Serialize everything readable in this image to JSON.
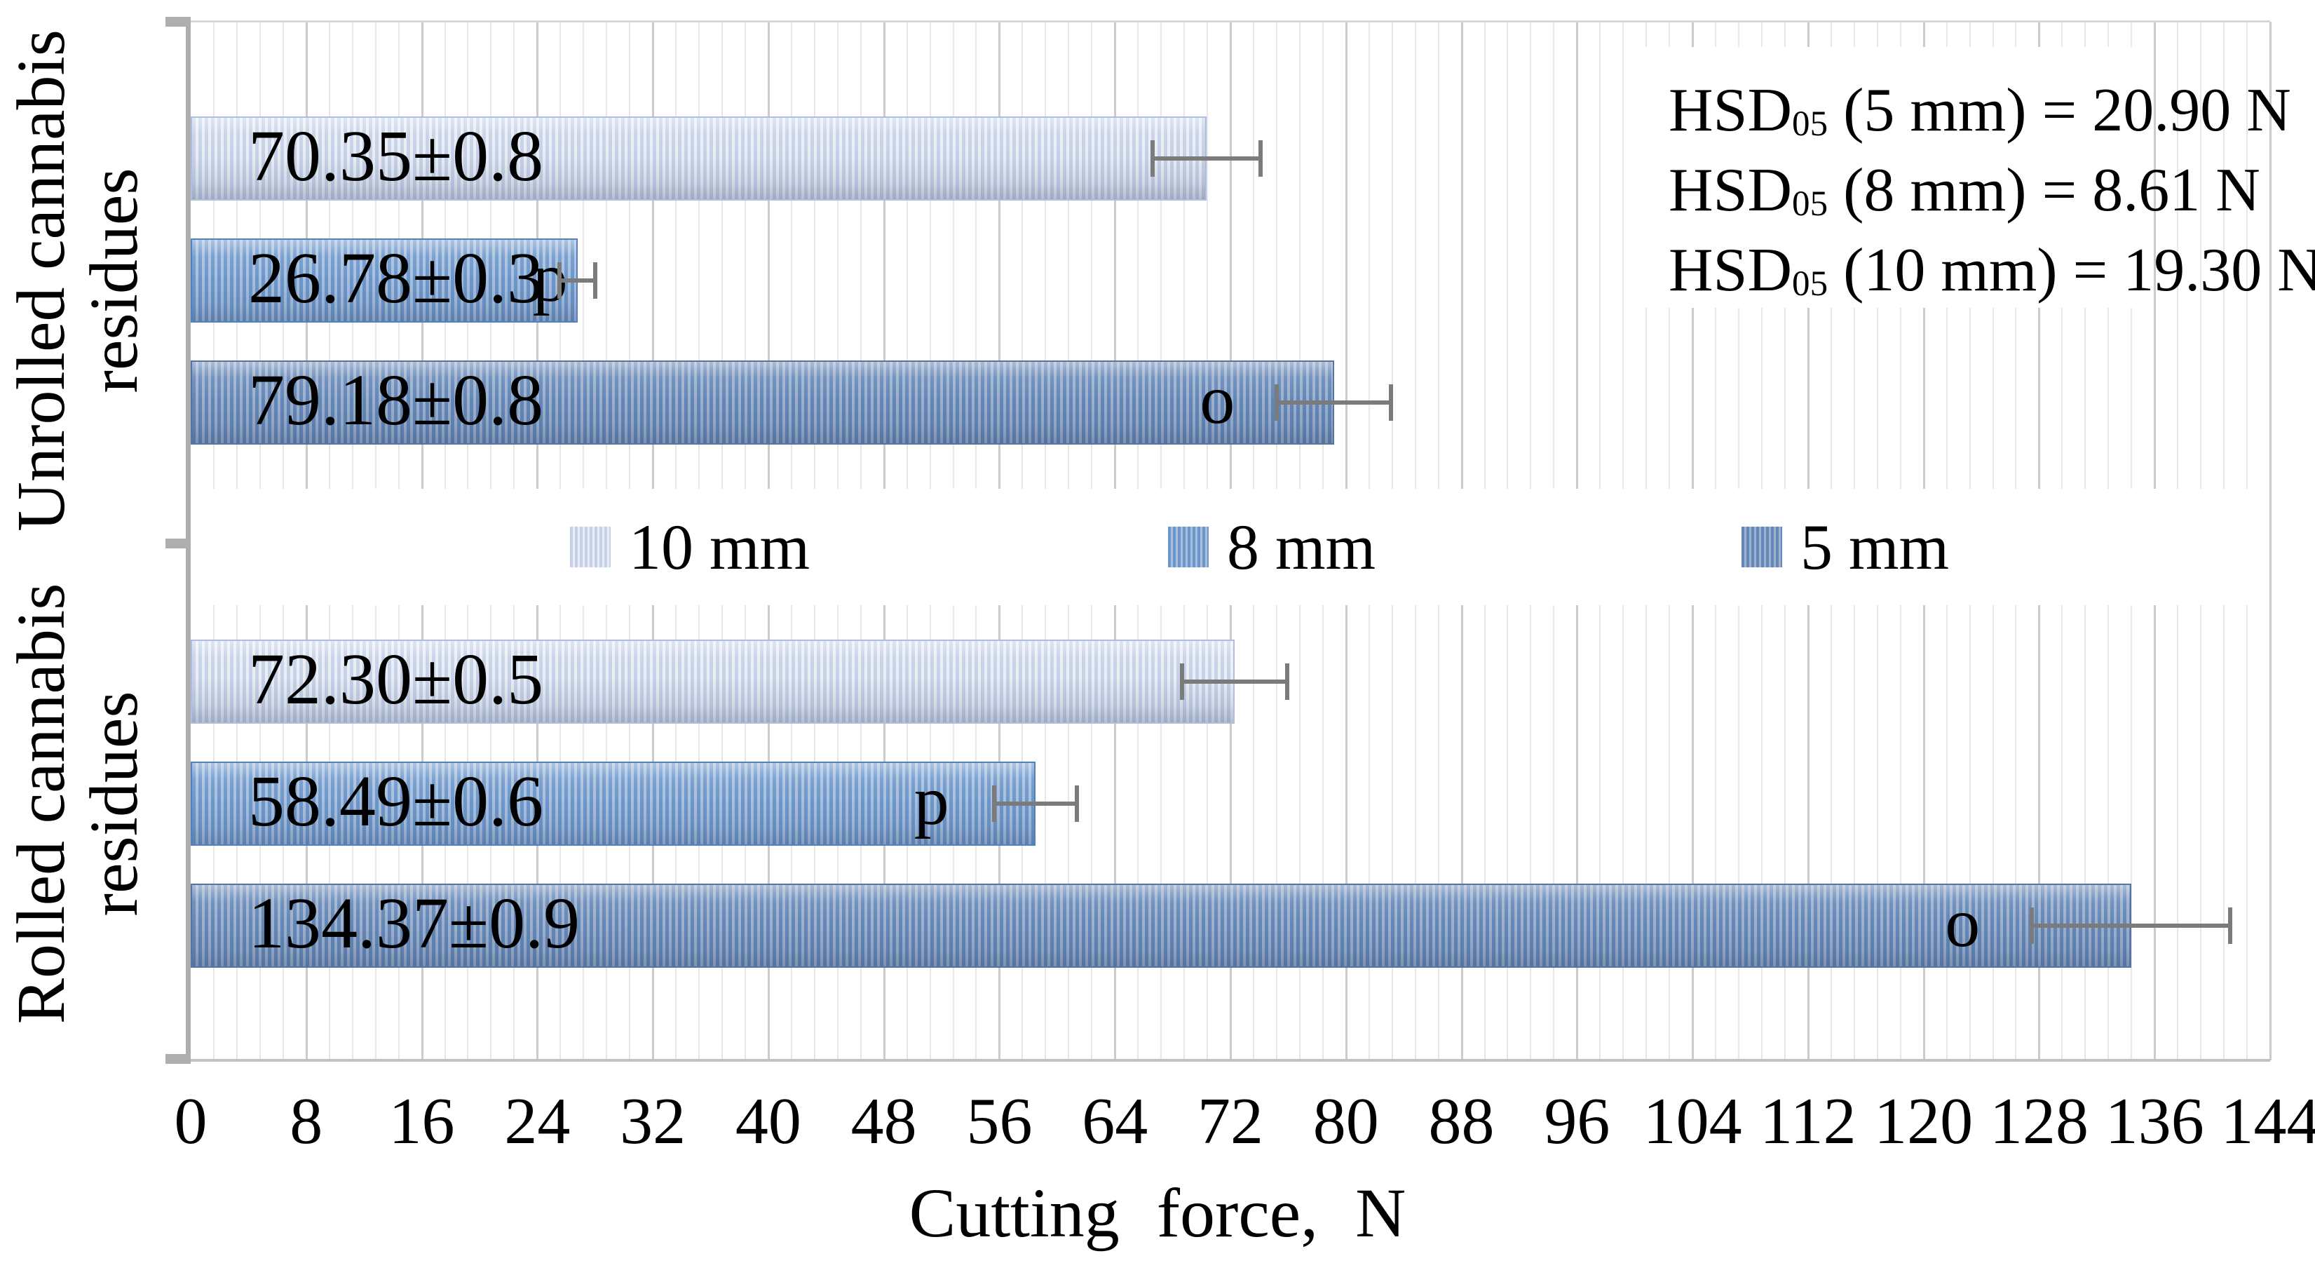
{
  "chart_data": {
    "type": "bar",
    "orientation": "horizontal",
    "xlabel": "Cutting force, N",
    "xlim": [
      0,
      144
    ],
    "tick_step": 8,
    "minor_grid_step": 1.6,
    "grid": true,
    "x_ticks": [
      0,
      8,
      16,
      24,
      32,
      40,
      48,
      56,
      64,
      72,
      80,
      88,
      96,
      104,
      112,
      120,
      128,
      136,
      144
    ],
    "legend_position": "center-between-groups",
    "groups": [
      {
        "category": "Unrolled cannabis residues",
        "bars": [
          {
            "series": "10 mm",
            "value": 70.35,
            "label": "70.35±0.8",
            "error_half_width": 3.9,
            "stat_letter": "",
            "stat_letter_at": null
          },
          {
            "series": "8 mm",
            "value": 26.78,
            "label": "26.78±0.3",
            "error_half_width": 1.4,
            "stat_letter": "p",
            "stat_letter_at": 24.8
          },
          {
            "series": "5 mm",
            "value": 79.18,
            "label": "79.18±0.8",
            "error_half_width": 4.1,
            "stat_letter": "o",
            "stat_letter_at": 71.0
          }
        ]
      },
      {
        "category": "Rolled cannabis residues",
        "bars": [
          {
            "series": "10 mm",
            "value": 72.3,
            "label": "72.30±0.5",
            "error_half_width": 3.8,
            "stat_letter": "",
            "stat_letter_at": null
          },
          {
            "series": "8 mm",
            "value": 58.49,
            "label": "58.49±0.6",
            "error_half_width": 3.0,
            "stat_letter": "p",
            "stat_letter_at": 51.2
          },
          {
            "series": "5 mm",
            "value": 134.37,
            "label": "134.37±0.9",
            "error_half_width": 7.0,
            "stat_letter": "o",
            "stat_letter_at": 122.6
          }
        ]
      }
    ],
    "legend": [
      {
        "label": "10 mm"
      },
      {
        "label": "8 mm"
      },
      {
        "label": "5 mm"
      }
    ],
    "annotation_lines": [
      {
        "base": "HSD",
        "sub": "05",
        "rest": " (5 mm) = 20.90 N"
      },
      {
        "base": "HSD",
        "sub": "05",
        "rest": " (8 mm) = 8.61 N"
      },
      {
        "base": "HSD",
        "sub": "05",
        "rest": " (10 mm) = 19.30 N"
      }
    ]
  },
  "colors": {
    "series": {
      "10 mm": {
        "base": "#c6d1e7",
        "stripe": "#e9eef6",
        "edge": "#afbede"
      },
      "8 mm": {
        "base": "#6d97cb",
        "stripe": "#a8c0de",
        "edge": "#5081bd"
      },
      "5 mm": {
        "base": "#6387b8",
        "stripe": "#9db0cc",
        "edge": "#56749f"
      }
    },
    "error_bar": "#7b7b7b",
    "grid_minor": "#e7e7e7",
    "grid_major": "#cbcbcb",
    "axis_line": "#aeaeae",
    "plot_background": "#ffffff",
    "text": "#000000"
  }
}
